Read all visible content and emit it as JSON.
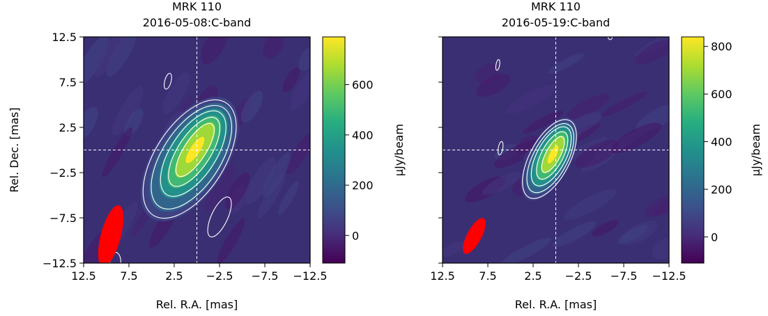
{
  "chart_data": [
    {
      "type": "heatmap",
      "title": "MRK 110",
      "subtitle": "2016-05-08:C-band",
      "xlabel": "Rel. R.A. [mas]",
      "ylabel": "Rel. Dec. [mas]",
      "xlim": [
        12.5,
        -12.5
      ],
      "ylim": [
        -12.5,
        12.5
      ],
      "x_ticks": [
        "12.5",
        "7.5",
        "2.5",
        "−2.5",
        "−7.5",
        "−12.5"
      ],
      "y_ticks": [
        "12.5",
        "7.5",
        "2.5",
        "−2.5",
        "−7.5",
        "−12.5"
      ],
      "colorbar": {
        "label": "μJy/beam",
        "range": [
          -110,
          790
        ],
        "ticks": [
          "0",
          "200",
          "400",
          "600"
        ],
        "tick_values": [
          0,
          200,
          400,
          600
        ],
        "colormap": "viridis"
      },
      "peak": {
        "x": 0.2,
        "y": 0.0,
        "value": 790
      },
      "crosshair": {
        "x": 0.0,
        "y": 0.0
      },
      "beam": {
        "x": 9.5,
        "y": -9.5,
        "major": 7.0,
        "minor": 2.2,
        "pa_deg": -15,
        "color": "#ff0000"
      },
      "contours": [
        {
          "x": 0.2,
          "y": 0.0,
          "rx": 1.2,
          "ry": 3.4,
          "angle": 33
        },
        {
          "x": 0.3,
          "y": -0.2,
          "rx": 1.8,
          "ry": 4.4,
          "angle": 33
        },
        {
          "x": 0.4,
          "y": -0.4,
          "rx": 2.5,
          "ry": 5.4,
          "angle": 33
        },
        {
          "x": 0.6,
          "y": -0.8,
          "rx": 3.2,
          "ry": 6.5,
          "angle": 33
        },
        {
          "x": 0.8,
          "y": -1.0,
          "rx": 3.8,
          "ry": 7.4,
          "angle": 33
        },
        {
          "x": 3.2,
          "y": 7.6,
          "rx": 0.35,
          "ry": 0.9,
          "angle": 15
        },
        {
          "x": -2.5,
          "y": -7.4,
          "rx": 0.9,
          "ry": 2.4,
          "angle": 25
        },
        {
          "x": 9.0,
          "y": -12.3,
          "rx": 0.6,
          "ry": 1.0,
          "angle": 0
        }
      ]
    },
    {
      "type": "heatmap",
      "title": "MRK 110",
      "subtitle": "2016-05-19:C-band",
      "xlabel": "Rel. R.A. [mas]",
      "ylabel": "",
      "xlim": [
        12.5,
        -12.5
      ],
      "ylim": [
        -12.5,
        12.5
      ],
      "x_ticks": [
        "12.5",
        "7.5",
        "2.5",
        "−2.5",
        "−7.5",
        "−12.5"
      ],
      "y_ticks": [],
      "colorbar": {
        "label": "μJy/beam",
        "range": [
          -110,
          840
        ],
        "ticks": [
          "0",
          "200",
          "400",
          "600",
          "800"
        ],
        "tick_values": [
          0,
          200,
          400,
          600,
          800
        ],
        "colormap": "viridis"
      },
      "peak": {
        "x": 0.3,
        "y": -0.5,
        "value": 840
      },
      "crosshair": {
        "x": 0.0,
        "y": 0.0
      },
      "beam": {
        "x": 9.0,
        "y": -9.5,
        "major": 4.4,
        "minor": 1.6,
        "pa_deg": -28,
        "color": "#ff0000"
      },
      "contours": [
        {
          "x": 0.3,
          "y": -0.5,
          "rx": 0.8,
          "ry": 2.2,
          "angle": 28
        },
        {
          "x": 0.4,
          "y": -0.6,
          "rx": 1.2,
          "ry": 2.9,
          "angle": 28
        },
        {
          "x": 0.5,
          "y": -0.7,
          "rx": 1.6,
          "ry": 3.6,
          "angle": 28
        },
        {
          "x": 0.6,
          "y": -0.9,
          "rx": 1.9,
          "ry": 4.2,
          "angle": 28
        },
        {
          "x": 0.7,
          "y": -1.0,
          "rx": 2.2,
          "ry": 4.8,
          "angle": 28
        },
        {
          "x": 6.1,
          "y": 0.2,
          "rx": 0.25,
          "ry": 0.75,
          "angle": 10
        },
        {
          "x": 6.4,
          "y": 9.4,
          "rx": 0.2,
          "ry": 0.6,
          "angle": 10
        },
        {
          "x": -6.0,
          "y": 12.6,
          "rx": 0.25,
          "ry": 0.4,
          "angle": 0
        }
      ]
    }
  ]
}
